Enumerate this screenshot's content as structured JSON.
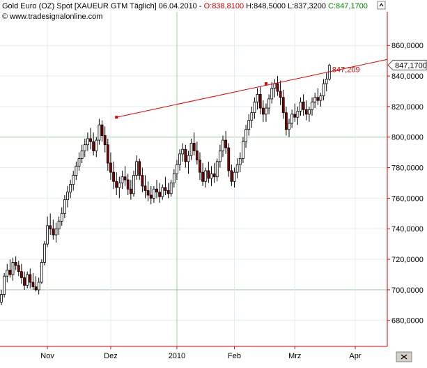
{
  "header": {
    "title": "Gold Euro (OZ) Spot [XAUEUR GTM  Täglich] 06.04.2010 - ",
    "open": "O:838,8100",
    "high": "H:848,5000",
    "low": "L:837,3200",
    "close": "C:847,1700",
    "copyright": "© www.tradesignalonline.com"
  },
  "colors": {
    "up": "#ffffff",
    "down": "#800000",
    "wick": "#000000",
    "trendline": "#e00000",
    "grid_major": "#a0cca0",
    "grid_minor": "#e0f0e0",
    "axis": "#e00000",
    "open_text": "#d00000",
    "close_text": "#008000"
  },
  "icons": [
    "collapse-icon",
    "close-icon"
  ],
  "chart_data": {
    "type": "candlestick",
    "ylim": [
      663,
      882
    ],
    "y_ticks": [
      "860,0000",
      "840,0000",
      "820,0000",
      "800,0000",
      "780,0000",
      "760,0000",
      "740,0000",
      "720,0000",
      "700,0000",
      "680,0000"
    ],
    "y_tick_values": [
      860,
      840,
      820,
      800,
      780,
      760,
      740,
      720,
      700,
      680
    ],
    "x_labels": [
      "Nov",
      "Dez",
      "2010",
      "Feb",
      "Mrz",
      "Apr"
    ],
    "x_label_index": [
      16,
      38,
      61,
      81,
      102,
      123
    ],
    "current_price_label": "847,1700",
    "current_price": 847.17,
    "trendline": {
      "label": "847,209",
      "label_value": 847.209,
      "points": [
        {
          "index": 40,
          "value": 813
        },
        {
          "index": 92,
          "value": 835
        },
        {
          "index": 125,
          "value": 847.2
        }
      ]
    },
    "candles": [
      [
        692,
        700,
        690,
        697
      ],
      [
        697,
        711,
        695,
        709
      ],
      [
        709,
        717,
        705,
        713
      ],
      [
        713,
        720,
        708,
        710
      ],
      [
        710,
        721,
        706,
        718
      ],
      [
        718,
        722,
        713,
        716
      ],
      [
        716,
        719,
        709,
        712
      ],
      [
        712,
        717,
        704,
        708
      ],
      [
        708,
        712,
        700,
        703
      ],
      [
        703,
        712,
        701,
        710
      ],
      [
        710,
        714,
        701,
        705
      ],
      [
        705,
        711,
        700,
        702
      ],
      [
        702,
        709,
        699,
        700
      ],
      [
        700,
        708,
        697,
        705
      ],
      [
        705,
        720,
        704,
        718
      ],
      [
        718,
        732,
        716,
        730
      ],
      [
        730,
        748,
        728,
        742
      ],
      [
        742,
        750,
        736,
        740
      ],
      [
        740,
        746,
        733,
        736
      ],
      [
        736,
        744,
        731,
        740
      ],
      [
        740,
        748,
        736,
        745
      ],
      [
        745,
        754,
        742,
        750
      ],
      [
        750,
        762,
        747,
        759
      ],
      [
        759,
        768,
        754,
        764
      ],
      [
        764,
        772,
        760,
        769
      ],
      [
        769,
        778,
        765,
        775
      ],
      [
        775,
        784,
        772,
        781
      ],
      [
        781,
        790,
        778,
        786
      ],
      [
        786,
        795,
        783,
        791
      ],
      [
        791,
        799,
        787,
        795
      ],
      [
        795,
        803,
        791,
        799
      ],
      [
        799,
        806,
        792,
        797
      ],
      [
        797,
        803,
        788,
        791
      ],
      [
        791,
        800,
        787,
        798
      ],
      [
        798,
        812,
        795,
        808
      ],
      [
        808,
        811,
        797,
        801
      ],
      [
        801,
        807,
        790,
        795
      ],
      [
        795,
        799,
        778,
        783
      ],
      [
        783,
        790,
        772,
        777
      ],
      [
        777,
        784,
        766,
        771
      ],
      [
        771,
        777,
        762,
        767
      ],
      [
        767,
        774,
        760,
        770
      ],
      [
        770,
        778,
        766,
        774
      ],
      [
        774,
        781,
        768,
        772
      ],
      [
        772,
        776,
        762,
        766
      ],
      [
        766,
        772,
        759,
        763
      ],
      [
        763,
        778,
        761,
        775
      ],
      [
        775,
        788,
        772,
        784
      ],
      [
        784,
        786,
        772,
        775
      ],
      [
        775,
        780,
        764,
        768
      ],
      [
        768,
        775,
        760,
        765
      ],
      [
        765,
        771,
        758,
        762
      ],
      [
        762,
        768,
        756,
        760
      ],
      [
        760,
        768,
        757,
        766
      ],
      [
        766,
        772,
        760,
        764
      ],
      [
        764,
        770,
        757,
        761
      ],
      [
        761,
        769,
        759,
        767
      ],
      [
        767,
        774,
        762,
        765
      ],
      [
        765,
        770,
        760,
        763
      ],
      [
        763,
        772,
        761,
        770
      ],
      [
        770,
        779,
        767,
        776
      ],
      [
        776,
        785,
        772,
        782
      ],
      [
        782,
        792,
        778,
        789
      ],
      [
        789,
        796,
        784,
        792
      ],
      [
        792,
        795,
        780,
        784
      ],
      [
        784,
        791,
        776,
        788
      ],
      [
        788,
        799,
        785,
        796
      ],
      [
        796,
        803,
        788,
        791
      ],
      [
        791,
        797,
        782,
        785
      ],
      [
        785,
        790,
        772,
        777
      ],
      [
        777,
        783,
        768,
        771
      ],
      [
        771,
        780,
        767,
        778
      ],
      [
        778,
        784,
        770,
        773
      ],
      [
        773,
        781,
        768,
        776
      ],
      [
        776,
        783,
        770,
        774
      ],
      [
        774,
        786,
        771,
        784
      ],
      [
        784,
        795,
        780,
        791
      ],
      [
        791,
        801,
        787,
        798
      ],
      [
        798,
        804,
        789,
        793
      ],
      [
        793,
        796,
        774,
        778
      ],
      [
        778,
        782,
        768,
        771
      ],
      [
        771,
        780,
        767,
        777
      ],
      [
        777,
        786,
        773,
        782
      ],
      [
        782,
        790,
        777,
        786
      ],
      [
        786,
        800,
        783,
        797
      ],
      [
        797,
        808,
        793,
        805
      ],
      [
        805,
        815,
        801,
        811
      ],
      [
        811,
        820,
        806,
        816
      ],
      [
        816,
        826,
        812,
        823
      ],
      [
        823,
        832,
        818,
        828
      ],
      [
        828,
        833,
        815,
        819
      ],
      [
        819,
        824,
        810,
        815
      ],
      [
        815,
        822,
        810,
        819
      ],
      [
        819,
        828,
        815,
        825
      ],
      [
        825,
        836,
        822,
        832
      ],
      [
        832,
        838,
        826,
        835
      ],
      [
        835,
        840,
        827,
        830
      ],
      [
        830,
        837,
        821,
        826
      ],
      [
        826,
        831,
        812,
        816
      ],
      [
        816,
        820,
        801,
        805
      ],
      [
        805,
        812,
        800,
        809
      ],
      [
        809,
        818,
        806,
        815
      ],
      [
        815,
        822,
        810,
        813
      ],
      [
        813,
        820,
        808,
        817
      ],
      [
        817,
        826,
        814,
        823
      ],
      [
        823,
        828,
        814,
        818
      ],
      [
        818,
        824,
        811,
        815
      ],
      [
        815,
        820,
        810,
        818
      ],
      [
        818,
        826,
        814,
        823
      ],
      [
        823,
        829,
        819,
        826
      ],
      [
        826,
        832,
        821,
        824
      ],
      [
        824,
        829,
        820,
        827
      ],
      [
        827,
        838,
        824,
        835
      ],
      [
        835,
        842,
        830,
        838
      ],
      [
        838,
        848,
        837,
        847
      ]
    ]
  }
}
